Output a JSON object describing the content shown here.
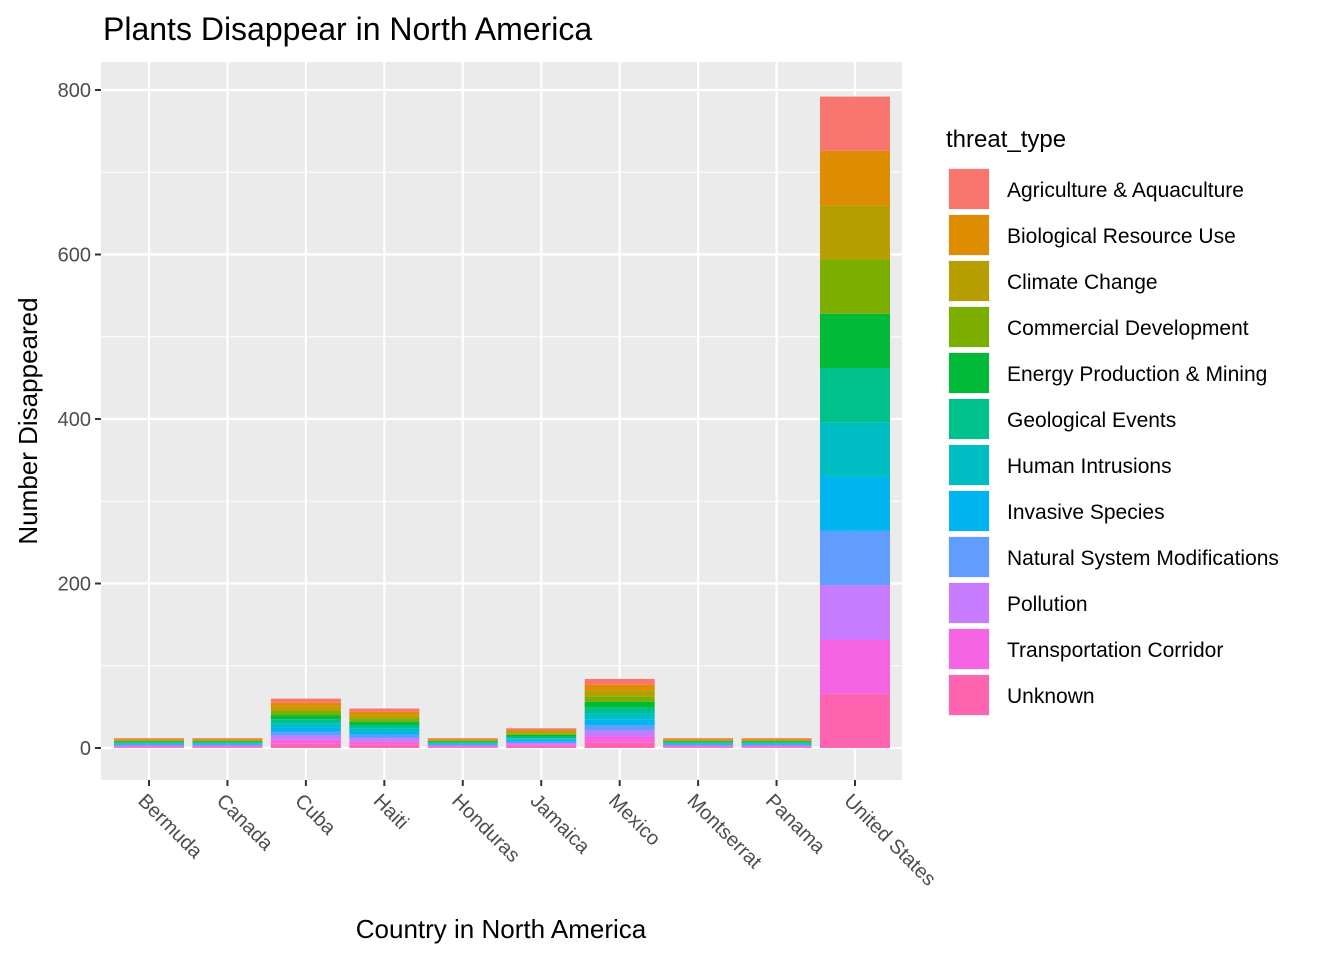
{
  "chart_data": {
    "type": "bar",
    "stacked": true,
    "title": "Plants Disappear in North America",
    "xlabel": "Country in North America",
    "ylabel": "Number Disappeared",
    "ylim": [
      -38,
      800
    ],
    "yticks": [
      0,
      200,
      400,
      600,
      800
    ],
    "ytick_labels": [
      "0",
      "200",
      "400",
      "600",
      "800"
    ],
    "grid": true,
    "legend_title": "threat_type",
    "legend_position": "right",
    "categories": [
      "Bermuda",
      "Canada",
      "Cuba",
      "Haiti",
      "Honduras",
      "Jamaica",
      "Mexico",
      "Montserrat",
      "Panama",
      "United States"
    ],
    "series": [
      {
        "name": "Agriculture & Aquaculture",
        "color": "#F8766D",
        "values": [
          1,
          1,
          5,
          4,
          1,
          2,
          7,
          1,
          1,
          66
        ]
      },
      {
        "name": "Biological Resource Use",
        "color": "#DE8C00",
        "values": [
          1,
          1,
          5,
          4,
          1,
          2,
          7,
          1,
          1,
          66
        ]
      },
      {
        "name": "Climate Change",
        "color": "#B79F00",
        "values": [
          1,
          1,
          5,
          4,
          1,
          2,
          7,
          1,
          1,
          66
        ]
      },
      {
        "name": "Commercial Development",
        "color": "#7CAE00",
        "values": [
          1,
          1,
          5,
          4,
          1,
          2,
          7,
          1,
          1,
          66
        ]
      },
      {
        "name": "Energy Production & Mining",
        "color": "#00BA38",
        "values": [
          1,
          1,
          5,
          4,
          1,
          2,
          7,
          1,
          1,
          66
        ]
      },
      {
        "name": "Geological Events",
        "color": "#00C08B",
        "values": [
          1,
          1,
          5,
          4,
          1,
          2,
          7,
          1,
          1,
          66
        ]
      },
      {
        "name": "Human Intrusions",
        "color": "#00BFC4",
        "values": [
          1,
          1,
          5,
          4,
          1,
          2,
          7,
          1,
          1,
          66
        ]
      },
      {
        "name": "Invasive Species",
        "color": "#00B4F0",
        "values": [
          1,
          1,
          5,
          4,
          1,
          2,
          7,
          1,
          1,
          66
        ]
      },
      {
        "name": "Natural System Modifications",
        "color": "#619CFF",
        "values": [
          1,
          1,
          5,
          4,
          1,
          2,
          7,
          1,
          1,
          66
        ]
      },
      {
        "name": "Pollution",
        "color": "#C77CFF",
        "values": [
          1,
          1,
          5,
          4,
          1,
          2,
          7,
          1,
          1,
          66
        ]
      },
      {
        "name": "Transportation Corridor",
        "color": "#F564E3",
        "values": [
          1,
          1,
          5,
          4,
          1,
          2,
          7,
          1,
          1,
          66
        ]
      },
      {
        "name": "Unknown",
        "color": "#FF64B0",
        "values": [
          1,
          1,
          5,
          4,
          1,
          2,
          7,
          1,
          1,
          66
        ]
      }
    ],
    "panel_background": "#EBEBEB",
    "grid_color": "#FFFFFF"
  }
}
